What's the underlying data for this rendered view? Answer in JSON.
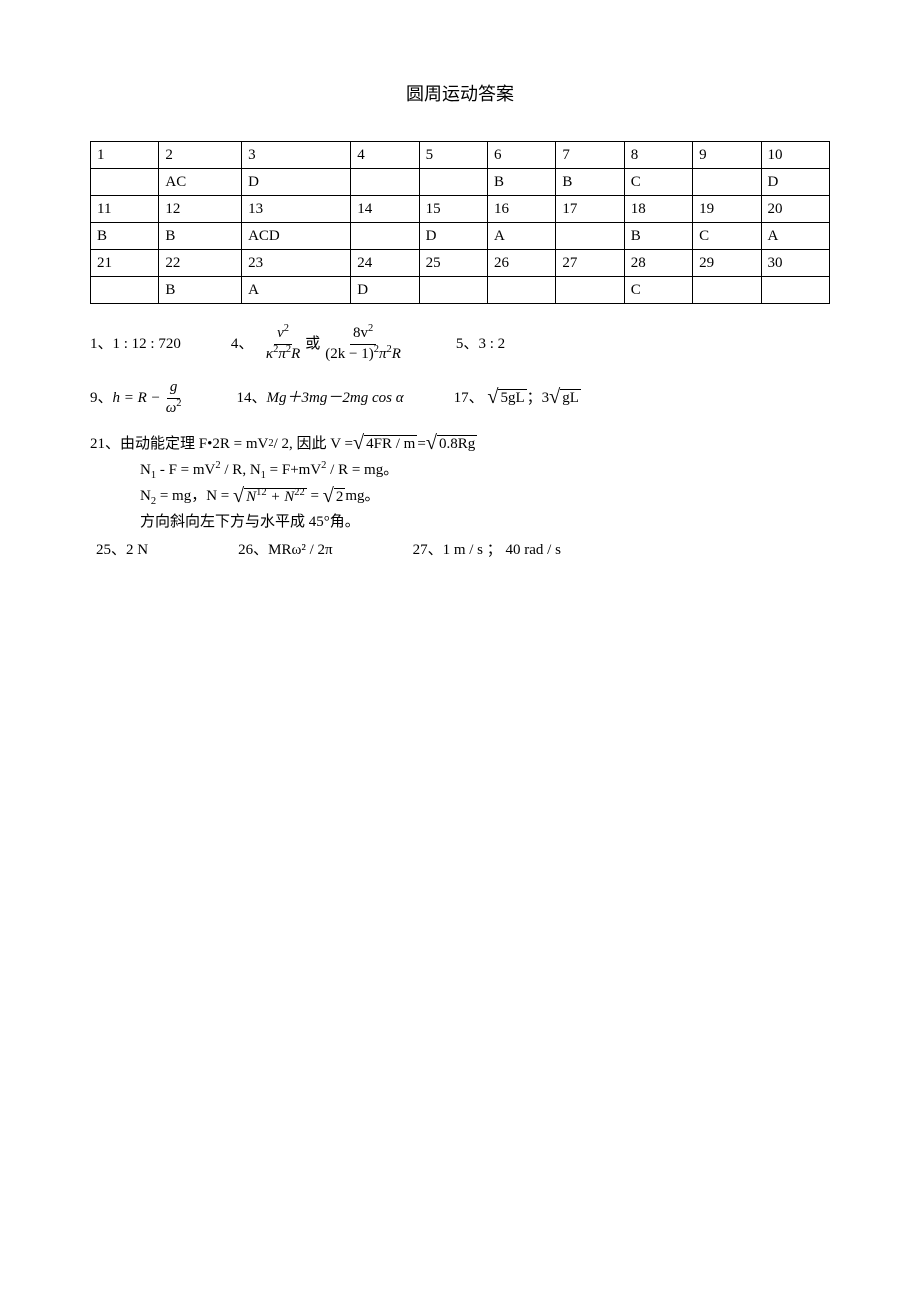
{
  "title": "圆周运动答案",
  "table": {
    "rows": [
      [
        "1",
        "2",
        "3",
        "4",
        "5",
        "6",
        "7",
        "8",
        "9",
        "10"
      ],
      [
        "",
        "AC",
        "D",
        "",
        "",
        "B",
        "B",
        "C",
        "",
        "D"
      ],
      [
        "11",
        "12",
        "13",
        "14",
        "15",
        "16",
        "17",
        "18",
        "19",
        "20"
      ],
      [
        "B",
        "B",
        "ACD",
        "",
        "D",
        "A",
        "",
        "B",
        "C",
        "A"
      ],
      [
        "21",
        "22",
        "23",
        "24",
        "25",
        "26",
        "27",
        "28",
        "29",
        "30"
      ],
      [
        "",
        "B",
        "A",
        "D",
        "",
        "",
        "",
        "C",
        "",
        ""
      ]
    ]
  },
  "answers": {
    "a1_label": "1、",
    "a1_value": "1 : 12 : 720",
    "a4_label": "4、",
    "a4_or": "或",
    "a5_label": "5、",
    "a5_value": "3 : 2",
    "a9_label": "9、",
    "a14_label": "14、",
    "a14_value": "Mg＋3mg－2mg cos α",
    "a17_label": "17、",
    "a17_sep": "  ；",
    "a21_label": "21、",
    "a21_line1_a": "由动能定理 F•2R = mV",
    "a21_line1_b": " / 2,   因此 V = ",
    "a21_line1_c": "=   ",
    "a21_line2_a": "N",
    "a21_line2_b": " - F = mV",
    "a21_line2_c": " / R,    N",
    "a21_line2_d": " = F+mV",
    "a21_line2_e": " / R = mg。",
    "a21_line3_a": "N",
    "a21_line3_b": " = mg，N =   ",
    "a21_line3_c": "= ",
    "a21_line3_d": "mg。",
    "a21_line4": "方向斜向左下方与水平成 45°角。",
    "a25_label": "25、",
    "a25_value": "2 N",
    "a26_label": "26、",
    "a26_value": "MRω² / 2π",
    "a27_label": "27、",
    "a27_value": "1 m / s   ；  40 rad / s"
  },
  "math": {
    "f1_num_a": "v",
    "f1_den_a": "κ",
    "f1_den_b": "π",
    "f1_den_c": "R",
    "f2_num_a": "8v",
    "f2_den_a": "(2k − 1)",
    "f2_den_b": "π",
    "f2_den_c": "R",
    "h_eq": "h = R − ",
    "g": "g",
    "omega": "ω",
    "five_gl": "5gL",
    "gl": "gL",
    "three": "3",
    "fr_m": "4FR / m",
    "p8rg": "0.8Rg",
    "n12n22_a": "N",
    "n12n22_b": " + N",
    "root2": "2",
    "sup2": "2",
    "sub1": "1",
    "sub2": "2",
    "sup12": "12",
    "sup22": "22"
  }
}
